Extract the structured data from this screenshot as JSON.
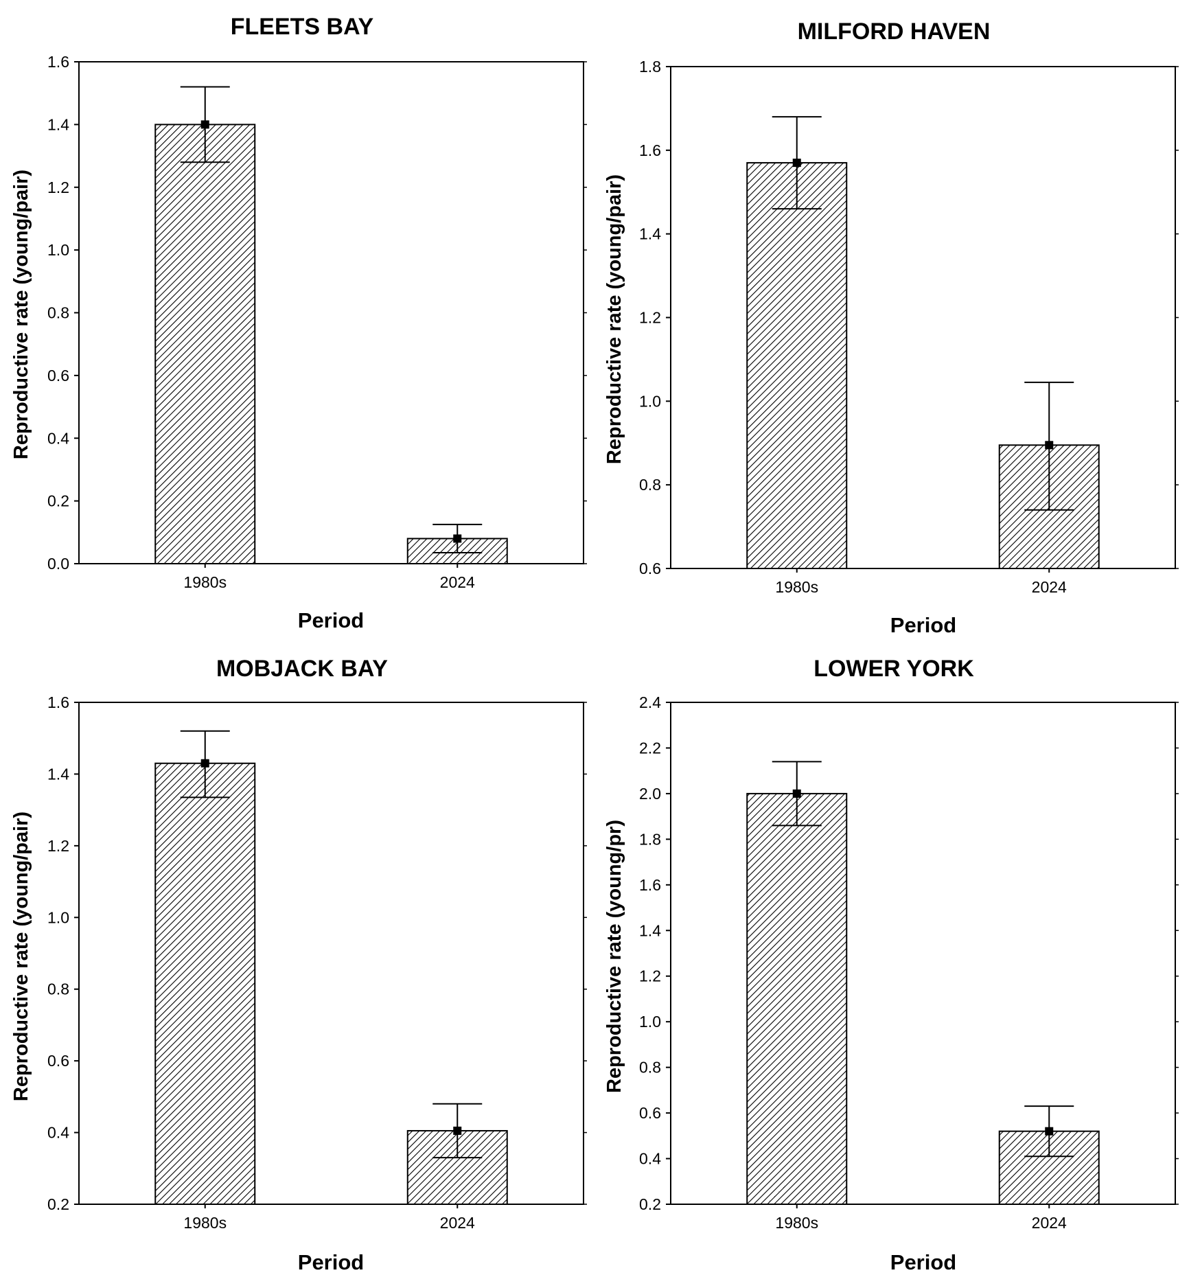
{
  "chart_data": [
    {
      "type": "bar",
      "title": "FLEETS BAY",
      "xlabel": "Period",
      "ylabel": "Reproductive rate (young/pair)",
      "categories": [
        "1980s",
        "2024"
      ],
      "values": [
        1.4,
        0.08
      ],
      "error_low": [
        1.28,
        0.035
      ],
      "error_high": [
        1.52,
        0.125
      ],
      "ylim": [
        0.0,
        1.6
      ],
      "yticks": [
        "0.0",
        "0.2",
        "0.4",
        "0.6",
        "0.8",
        "1.0",
        "1.2",
        "1.4",
        "1.6"
      ],
      "grid": false,
      "bar_pattern": "diagonal-hatch"
    },
    {
      "type": "bar",
      "title": "MILFORD HAVEN",
      "xlabel": "Period",
      "ylabel": "Reproductive rate (young/pair)",
      "categories": [
        "1980s",
        "2024"
      ],
      "values": [
        1.57,
        0.895
      ],
      "error_low": [
        1.46,
        0.74
      ],
      "error_high": [
        1.68,
        1.045
      ],
      "ylim": [
        0.6,
        1.8
      ],
      "yticks": [
        "0.6",
        "0.8",
        "1.0",
        "1.2",
        "1.4",
        "1.6",
        "1.8"
      ],
      "grid": false,
      "bar_pattern": "diagonal-hatch"
    },
    {
      "type": "bar",
      "title": "MOBJACK BAY",
      "xlabel": "Period",
      "ylabel": "Reproductive rate (young/pair)",
      "categories": [
        "1980s",
        "2024"
      ],
      "values": [
        1.43,
        0.405
      ],
      "error_low": [
        1.335,
        0.33
      ],
      "error_high": [
        1.52,
        0.48
      ],
      "ylim": [
        0.2,
        1.6
      ],
      "yticks": [
        "0.2",
        "0.4",
        "0.6",
        "0.8",
        "1.0",
        "1.2",
        "1.4",
        "1.6"
      ],
      "grid": false,
      "bar_pattern": "diagonal-hatch"
    },
    {
      "type": "bar",
      "title": "LOWER YORK",
      "xlabel": "Period",
      "ylabel": "Reproductive rate (young/pr)",
      "categories": [
        "1980s",
        "2024"
      ],
      "values": [
        2.0,
        0.52
      ],
      "error_low": [
        1.86,
        0.41
      ],
      "error_high": [
        2.14,
        0.63
      ],
      "ylim": [
        0.2,
        2.4
      ],
      "yticks": [
        "0.2",
        "0.4",
        "0.6",
        "0.8",
        "1.0",
        "1.2",
        "1.4",
        "1.6",
        "1.8",
        "2.0",
        "2.2",
        "2.4"
      ],
      "grid": false,
      "bar_pattern": "diagonal-hatch"
    }
  ]
}
